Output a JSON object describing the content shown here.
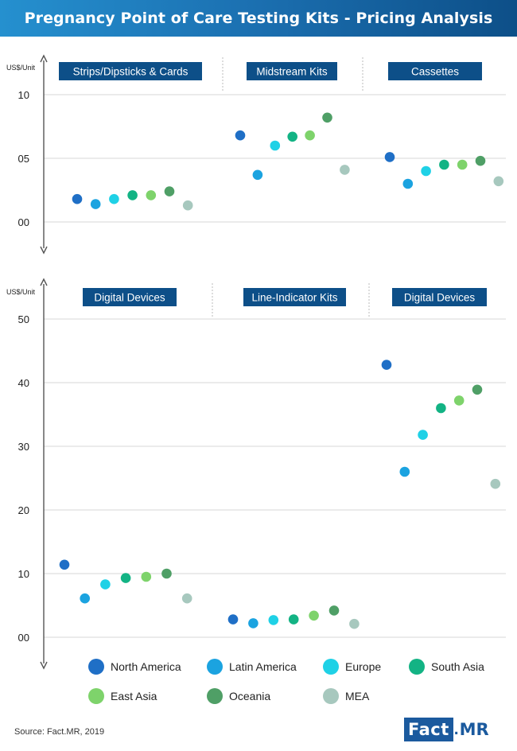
{
  "title": "Pregnancy Point of Care Testing Kits - Pricing Analysis",
  "source": "Source: Fact.MR, 2019",
  "logo": {
    "part1": "Fact",
    "dot": ".",
    "part2": "MR"
  },
  "colors": {
    "North America": "#1f6fc6",
    "Latin America": "#1ba3e0",
    "Europe": "#1fd1e6",
    "South Asia": "#13b384",
    "East Asia": "#7ed36b",
    "Oceania": "#4f9f66",
    "MEA": "#a7c8be"
  },
  "legend": [
    "North America",
    "Latin America",
    "Europe",
    "South Asia",
    "East Asia",
    "Oceania",
    "MEA"
  ],
  "chart_data": [
    {
      "type": "scatter",
      "ylabel": "US$/Unit",
      "ylim": [
        0,
        10
      ],
      "yticks": [
        0,
        5,
        10
      ],
      "ytick_labels": [
        "00",
        "05",
        "10"
      ],
      "grid": true,
      "groups": [
        {
          "label": "Strips/Dipsticks & Cards",
          "values": [
            1.8,
            1.4,
            1.8,
            2.1,
            2.1,
            2.4,
            1.3
          ]
        },
        {
          "label": "Midstream Kits",
          "values": [
            6.8,
            3.7,
            6.0,
            6.7,
            6.8,
            8.2,
            4.1
          ]
        },
        {
          "label": "Cassettes",
          "values": [
            5.1,
            3.0,
            4.0,
            4.5,
            4.5,
            4.8,
            3.2
          ]
        }
      ]
    },
    {
      "type": "scatter",
      "ylabel": "US$/Unit",
      "ylim": [
        0,
        50
      ],
      "yticks": [
        0,
        10,
        20,
        30,
        40,
        50
      ],
      "ytick_labels": [
        "00",
        "10",
        "20",
        "30",
        "40",
        "50"
      ],
      "grid": true,
      "groups": [
        {
          "label": "Digital Devices",
          "values": [
            11.4,
            6.1,
            8.3,
            9.3,
            9.5,
            10.0,
            6.1
          ]
        },
        {
          "label": "Line-Indicator Kits",
          "values": [
            2.8,
            2.2,
            2.7,
            2.8,
            3.4,
            4.2,
            2.1
          ]
        },
        {
          "label": "Digital Devices",
          "values": [
            42.8,
            26.0,
            31.8,
            36.0,
            37.2,
            38.9,
            24.1
          ]
        }
      ]
    }
  ]
}
